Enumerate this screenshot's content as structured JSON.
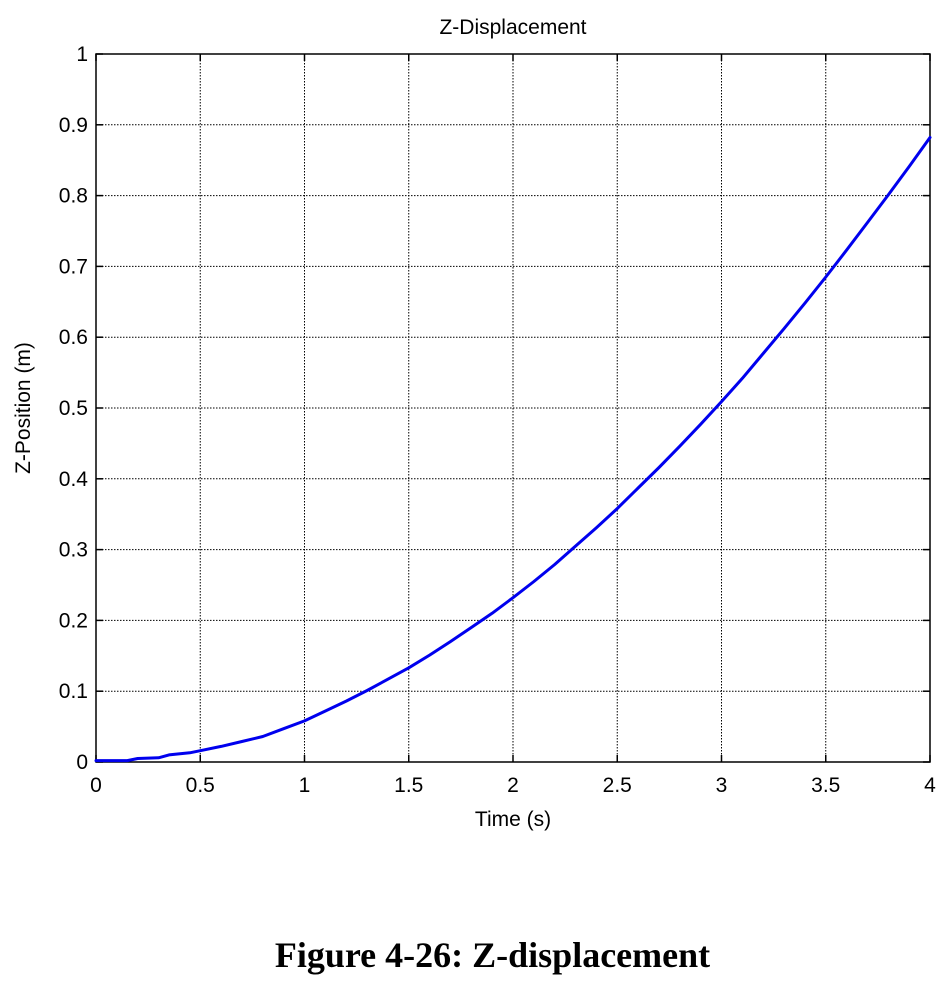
{
  "figure": {
    "caption": "Figure 4-26: Z-displacement"
  },
  "colors": {
    "series": "#0000ee",
    "axes": "#000000",
    "grid": "#000000"
  },
  "chart_data": {
    "type": "line",
    "title": "Z-Displacement",
    "xlabel": "Time (s)",
    "ylabel": "Z-Position (m)",
    "xlim": [
      0,
      4
    ],
    "ylim": [
      0,
      1
    ],
    "xticks": [
      0,
      0.5,
      1,
      1.5,
      2,
      2.5,
      3,
      3.5,
      4
    ],
    "xtick_labels": [
      "0",
      "0.5",
      "1",
      "1.5",
      "2",
      "2.5",
      "3",
      "3.5",
      "4"
    ],
    "yticks": [
      0,
      0.1,
      0.2,
      0.3,
      0.4,
      0.5,
      0.6,
      0.7,
      0.8,
      0.9,
      1
    ],
    "ytick_labels": [
      "0",
      "0.1",
      "0.2",
      "0.3",
      "0.4",
      "0.5",
      "0.6",
      "0.7",
      "0.8",
      "0.9",
      "1"
    ],
    "grid": true,
    "legend": "none",
    "series": [
      {
        "x": [
          0,
          0.15,
          0.2,
          0.3,
          0.35,
          0.45,
          0.5,
          0.6,
          0.7,
          0.8,
          0.9,
          1.0,
          1.1,
          1.2,
          1.3,
          1.4,
          1.5,
          1.6,
          1.7,
          1.8,
          1.9,
          2.0,
          2.1,
          2.2,
          2.3,
          2.4,
          2.5,
          2.6,
          2.7,
          2.8,
          2.9,
          3.0,
          3.1,
          3.2,
          3.3,
          3.4,
          3.5,
          3.6,
          3.7,
          3.8,
          3.9,
          4.0
        ],
        "y": [
          0.002,
          0.002,
          0.005,
          0.006,
          0.01,
          0.013,
          0.016,
          0.022,
          0.029,
          0.036,
          0.047,
          0.058,
          0.072,
          0.086,
          0.101,
          0.117,
          0.133,
          0.151,
          0.17,
          0.19,
          0.21,
          0.232,
          0.255,
          0.279,
          0.305,
          0.331,
          0.358,
          0.387,
          0.416,
          0.446,
          0.477,
          0.509,
          0.542,
          0.577,
          0.612,
          0.648,
          0.685,
          0.723,
          0.762,
          0.801,
          0.841,
          0.882
        ]
      }
    ]
  }
}
